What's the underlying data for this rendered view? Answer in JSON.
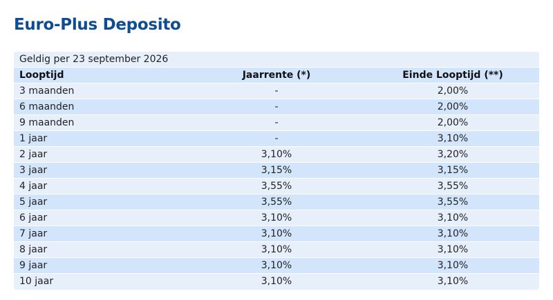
{
  "title": "Euro-Plus Deposito",
  "valid_from": "Geldig per 23 september 2026",
  "headers": {
    "term": "Looptijd",
    "annual_rate": "Jaarrente (*)",
    "end_of_term": "Einde Looptijd (**)"
  },
  "rows": [
    {
      "term": "3 maanden",
      "annual_rate": "-",
      "end_of_term": "2,00%"
    },
    {
      "term": "6 maanden",
      "annual_rate": "-",
      "end_of_term": "2,00%"
    },
    {
      "term": "9 maanden",
      "annual_rate": "-",
      "end_of_term": "2,00%"
    },
    {
      "term": "1 jaar",
      "annual_rate": "-",
      "end_of_term": "3,10%"
    },
    {
      "term": "2 jaar",
      "annual_rate": "3,10%",
      "end_of_term": "3,20%"
    },
    {
      "term": "3 jaar",
      "annual_rate": "3,15%",
      "end_of_term": "3,15%"
    },
    {
      "term": "4 jaar",
      "annual_rate": "3,55%",
      "end_of_term": "3,55%"
    },
    {
      "term": "5 jaar",
      "annual_rate": "3,55%",
      "end_of_term": "3,55%"
    },
    {
      "term": "6 jaar",
      "annual_rate": "3,10%",
      "end_of_term": "3,10%"
    },
    {
      "term": "7 jaar",
      "annual_rate": "3,10%",
      "end_of_term": "3,10%"
    },
    {
      "term": "8 jaar",
      "annual_rate": "3,10%",
      "end_of_term": "3,10%"
    },
    {
      "term": "9 jaar",
      "annual_rate": "3,10%",
      "end_of_term": "3,10%"
    },
    {
      "term": "10 jaar",
      "annual_rate": "3,10%",
      "end_of_term": "3,10%"
    }
  ],
  "colors": {
    "title": "#0f4c92",
    "row_light": "#e7effa",
    "row_dark": "#d3e5fb"
  }
}
